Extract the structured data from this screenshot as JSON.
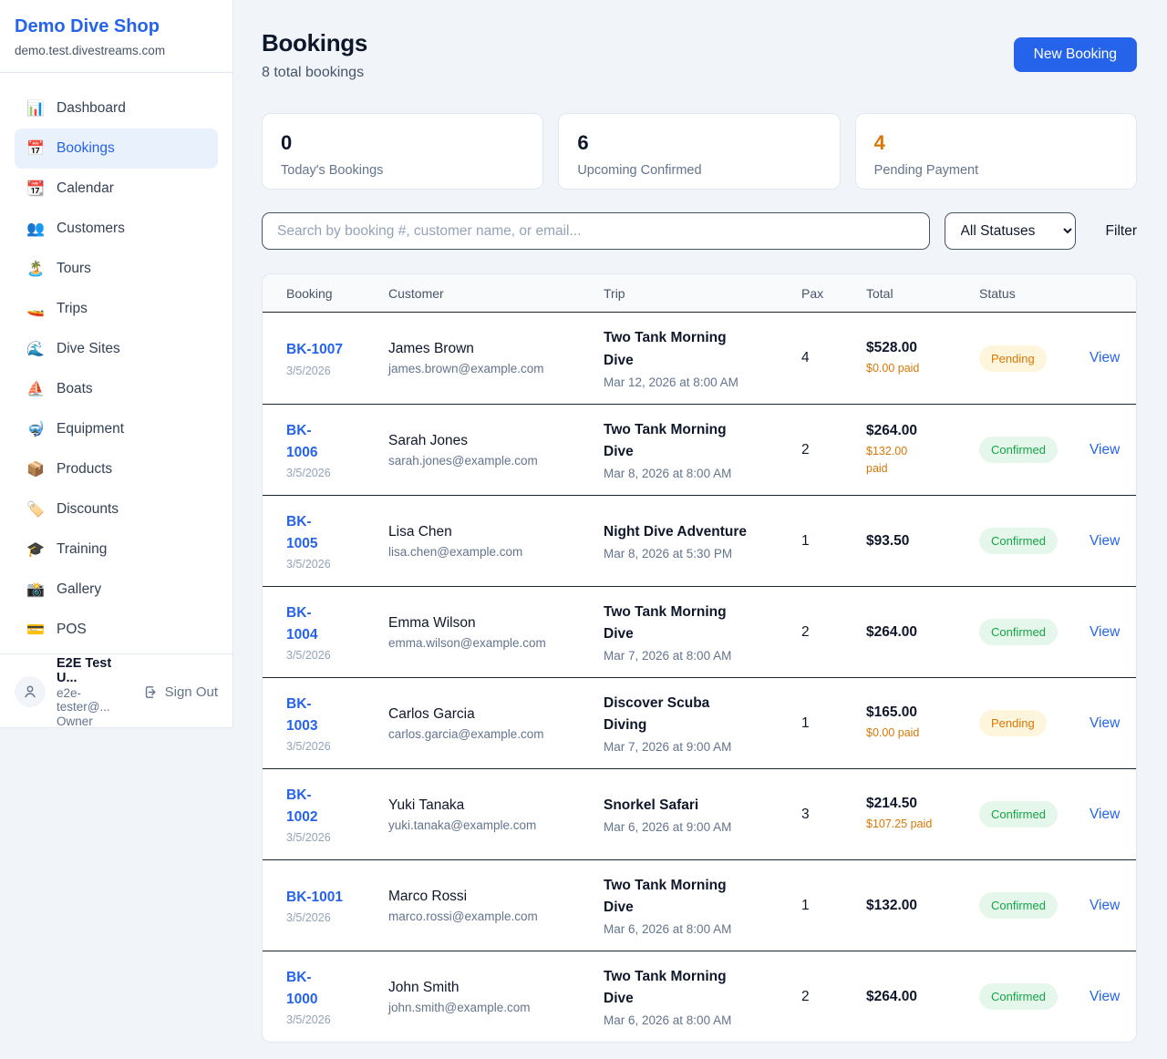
{
  "colors": {
    "accent": "#2563eb",
    "pending": "#d97706",
    "confirmed": "#16a34a",
    "page_bg": "#f1f5f9"
  },
  "sidebar": {
    "brand": "Demo Dive Shop",
    "domain": "demo.test.divestreams.com",
    "items": [
      {
        "key": "dashboard",
        "label": "Dashboard",
        "icon": "📊",
        "active": false
      },
      {
        "key": "bookings",
        "label": "Bookings",
        "icon": "📅",
        "active": true
      },
      {
        "key": "calendar",
        "label": "Calendar",
        "icon": "📆",
        "active": false
      },
      {
        "key": "customers",
        "label": "Customers",
        "icon": "👥",
        "active": false
      },
      {
        "key": "tours",
        "label": "Tours",
        "icon": "🏝️",
        "active": false
      },
      {
        "key": "trips",
        "label": "Trips",
        "icon": "🚤",
        "active": false
      },
      {
        "key": "dive-sites",
        "label": "Dive Sites",
        "icon": "🌊",
        "active": false
      },
      {
        "key": "boats",
        "label": "Boats",
        "icon": "⛵",
        "active": false
      },
      {
        "key": "equipment",
        "label": "Equipment",
        "icon": "🤿",
        "active": false
      },
      {
        "key": "products",
        "label": "Products",
        "icon": "📦",
        "active": false
      },
      {
        "key": "discounts",
        "label": "Discounts",
        "icon": "🏷️",
        "active": false
      },
      {
        "key": "training",
        "label": "Training",
        "icon": "🎓",
        "active": false
      },
      {
        "key": "gallery",
        "label": "Gallery",
        "icon": "📸",
        "active": false
      },
      {
        "key": "pos",
        "label": "POS",
        "icon": "💳",
        "active": false
      }
    ],
    "user": {
      "name": "E2E Test U...",
      "email": "e2e-tester@...",
      "role": "Owner",
      "sign_out": "Sign Out"
    }
  },
  "header": {
    "title": "Bookings",
    "subtitle": "8 total bookings",
    "new_booking": "New Booking"
  },
  "stats": [
    {
      "value": "0",
      "label": "Today's Bookings",
      "color": "#0f172a"
    },
    {
      "value": "6",
      "label": "Upcoming Confirmed",
      "color": "#0f172a"
    },
    {
      "value": "4",
      "label": "Pending Payment",
      "color": "#d97706"
    }
  ],
  "controls": {
    "search_placeholder": "Search by booking #, customer name, or email...",
    "status_filter": "All Statuses",
    "filter_label": "Filter"
  },
  "table": {
    "columns": [
      "Booking",
      "Customer",
      "Trip",
      "Pax",
      "Total",
      "Status"
    ],
    "rows": [
      {
        "id": "BK-1007",
        "date": "3/5/2026",
        "name": "James Brown",
        "email": "james.brown@example.com",
        "trip": "Two Tank Morning Dive",
        "trip_time": "Mar 12, 2026 at 8:00 AM",
        "pax": "4",
        "total": "$528.00",
        "paid": "$0.00 paid",
        "status": "Pending",
        "action": "View"
      },
      {
        "id": "BK-\n1006",
        "date": "3/5/2026",
        "name": "Sarah Jones",
        "email": "sarah.jones@example.com",
        "trip": "Two Tank Morning Dive",
        "trip_time": "Mar 8, 2026 at 8:00 AM",
        "pax": "2",
        "total": "$264.00",
        "paid": "$132.00\npaid",
        "status": "Confirmed",
        "action": "View"
      },
      {
        "id": "BK-\n1005",
        "date": "3/5/2026",
        "name": "Lisa Chen",
        "email": "lisa.chen@example.com",
        "trip": "Night Dive Adventure",
        "trip_time": "Mar 8, 2026 at 5:30 PM",
        "pax": "1",
        "total": "$93.50",
        "paid": null,
        "status": "Confirmed",
        "action": "View"
      },
      {
        "id": "BK-\n1004",
        "date": "3/5/2026",
        "name": "Emma Wilson",
        "email": "emma.wilson@example.com",
        "trip": "Two Tank Morning Dive",
        "trip_time": "Mar 7, 2026 at 8:00 AM",
        "pax": "2",
        "total": "$264.00",
        "paid": null,
        "status": "Confirmed",
        "action": "View"
      },
      {
        "id": "BK-\n1003",
        "date": "3/5/2026",
        "name": "Carlos Garcia",
        "email": "carlos.garcia@example.com",
        "trip": "Discover Scuba Diving",
        "trip_time": "Mar 7, 2026 at 9:00 AM",
        "pax": "1",
        "total": "$165.00",
        "paid": "$0.00 paid",
        "status": "Pending",
        "action": "View"
      },
      {
        "id": "BK-\n1002",
        "date": "3/5/2026",
        "name": "Yuki Tanaka",
        "email": "yuki.tanaka@example.com",
        "trip": "Snorkel Safari",
        "trip_time": "Mar 6, 2026 at 9:00 AM",
        "pax": "3",
        "total": "$214.50",
        "paid": "$107.25 paid",
        "status": "Confirmed",
        "action": "View"
      },
      {
        "id": "BK-1001",
        "date": "3/5/2026",
        "name": "Marco Rossi",
        "email": "marco.rossi@example.com",
        "trip": "Two Tank Morning Dive",
        "trip_time": "Mar 6, 2026 at 8:00 AM",
        "pax": "1",
        "total": "$132.00",
        "paid": null,
        "status": "Confirmed",
        "action": "View"
      },
      {
        "id": "BK-\n1000",
        "date": "3/5/2026",
        "name": "John Smith",
        "email": "john.smith@example.com",
        "trip": "Two Tank Morning Dive",
        "trip_time": "Mar 6, 2026 at 8:00 AM",
        "pax": "2",
        "total": "$264.00",
        "paid": null,
        "status": "Confirmed",
        "action": "View"
      }
    ]
  }
}
